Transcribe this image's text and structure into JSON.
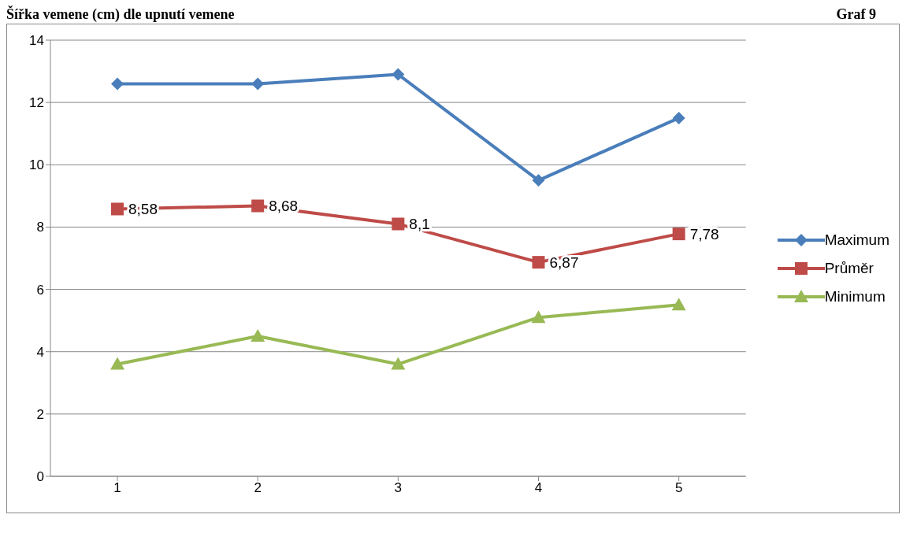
{
  "chart_data": {
    "type": "line",
    "title": "Šířka vemene (cm) dle upnutí vemene",
    "subtitle": "Graf 9",
    "categories": [
      "1",
      "2",
      "3",
      "4",
      "5"
    ],
    "series": [
      {
        "name": "Maximum",
        "color": "#4a7ebb",
        "marker": "diamond",
        "values": [
          12.6,
          12.6,
          12.9,
          9.5,
          11.5
        ]
      },
      {
        "name": "Průměr",
        "color": "#be4b48",
        "marker": "square",
        "values": [
          8.58,
          8.68,
          8.1,
          6.87,
          7.78
        ],
        "value_labels": [
          "8,58",
          "8,68",
          "8,1",
          "6,87",
          "7,78"
        ]
      },
      {
        "name": "Minimum",
        "color": "#98b954",
        "marker": "triangle",
        "values": [
          3.6,
          4.5,
          3.6,
          5.1,
          5.5
        ]
      }
    ],
    "ylim": [
      0,
      14
    ],
    "yticks": [
      0,
      2,
      4,
      6,
      8,
      10,
      12,
      14
    ],
    "grid": "y",
    "legend": "right"
  }
}
